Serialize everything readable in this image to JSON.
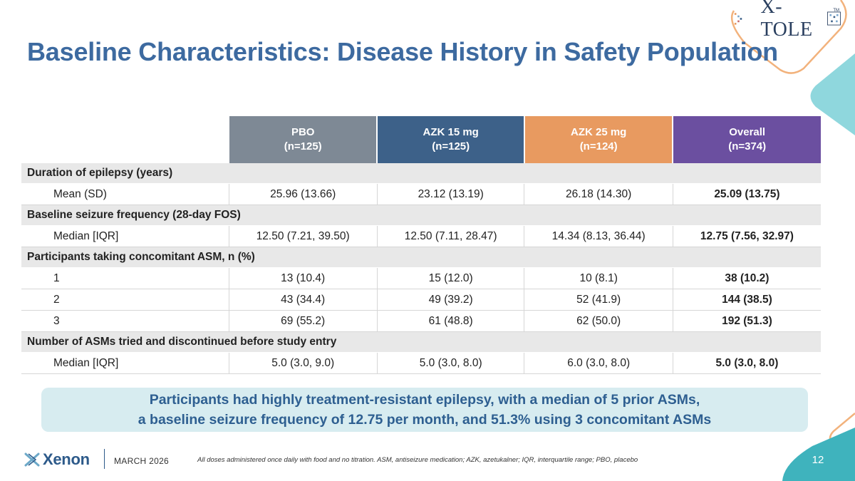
{
  "title": "Baseline Characteristics: Disease History in Safety Population",
  "logo": {
    "name": "X-TOLE",
    "tm": "TM"
  },
  "table": {
    "columns": [
      {
        "name": "PBO",
        "n": "(n=125)"
      },
      {
        "name": "AZK 15 mg",
        "n": "(n=125)"
      },
      {
        "name": "AZK 25 mg",
        "n": "(n=124)"
      },
      {
        "name": "Overall",
        "n": "(n=374)"
      }
    ],
    "sections": [
      {
        "title": "Duration of epilepsy (years)",
        "rows": [
          {
            "label": "Mean (SD)",
            "values": [
              "25.96 (13.66)",
              "23.12 (13.19)",
              "26.18 (14.30)",
              "25.09 (13.75)"
            ]
          }
        ]
      },
      {
        "title": "Baseline seizure frequency (28-day FOS)",
        "rows": [
          {
            "label": "Median [IQR]",
            "values": [
              "12.50 (7.21, 39.50)",
              "12.50 (7.11, 28.47)",
              "14.34 (8.13, 36.44)",
              "12.75 (7.56, 32.97)"
            ]
          }
        ]
      },
      {
        "title": "Participants taking concomitant ASM, n (%)",
        "rows": [
          {
            "label": "1",
            "values": [
              "13 (10.4)",
              "15 (12.0)",
              "10 (8.1)",
              "38 (10.2)"
            ]
          },
          {
            "label": "2",
            "values": [
              "43 (34.4)",
              "49 (39.2)",
              "52 (41.9)",
              "144 (38.5)"
            ]
          },
          {
            "label": "3",
            "values": [
              "69 (55.2)",
              "61 (48.8)",
              "62 (50.0)",
              "192 (51.3)"
            ]
          }
        ]
      },
      {
        "title": "Number of ASMs tried and discontinued before study entry",
        "rows": [
          {
            "label": "Median [IQR]",
            "values": [
              "5.0 (3.0, 9.0)",
              "5.0 (3.0, 8.0)",
              "6.0 (3.0, 8.0)",
              "5.0 (3.0, 8.0)"
            ]
          }
        ]
      }
    ]
  },
  "callout": {
    "line1": "Participants had highly treatment-resistant epilepsy, with a median of 5 prior ASMs,",
    "line2": "a baseline seizure frequency of 12.75 per month, and 51.3% using 3 concomitant ASMs"
  },
  "footer": {
    "brand": "Xenon",
    "date": "MARCH 2026",
    "footnote": "All doses administered once daily with food and no titration. ASM, antiseizure medication; AZK, azetukalner; IQR, interquartile range; PBO, placebo",
    "page_number": "12"
  },
  "colors": {
    "title": "#3d6aa0",
    "pbo": "#7e8995",
    "azk15": "#3d6189",
    "azk25": "#e89a60",
    "overall": "#6b4fa0",
    "teal": "#5ec6cf",
    "orange": "#f2b27c"
  }
}
